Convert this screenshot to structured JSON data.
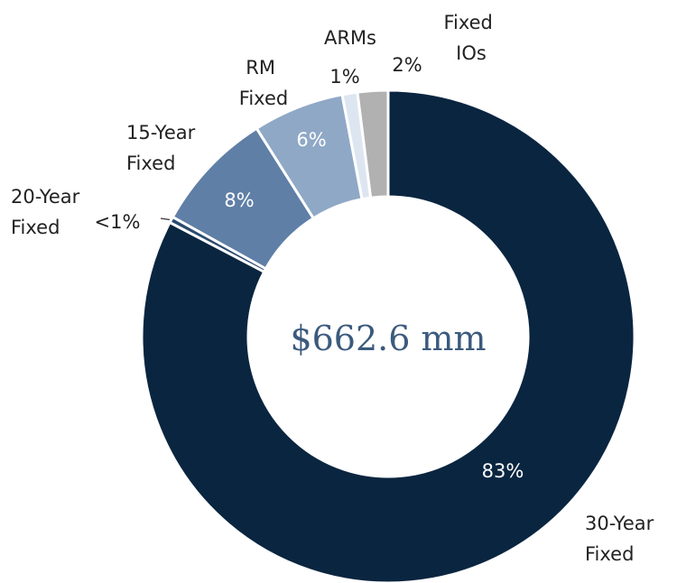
{
  "chart_data": {
    "type": "donut",
    "center_label": "$662.6 mm",
    "categories": [
      "30-Year Fixed",
      "20-Year Fixed",
      "15-Year Fixed",
      "RM Fixed",
      "ARMs",
      "Fixed IOs"
    ],
    "values": [
      83,
      0.4,
      8,
      6,
      1,
      2
    ],
    "value_labels": [
      "83%",
      "<1%",
      "8%",
      "6%",
      "1%",
      "2%"
    ],
    "colors": [
      "#0a2540",
      "#2b4a70",
      "#5f7fa6",
      "#8fa8c6",
      "#dde6f0",
      "#b1b1b1"
    ]
  }
}
